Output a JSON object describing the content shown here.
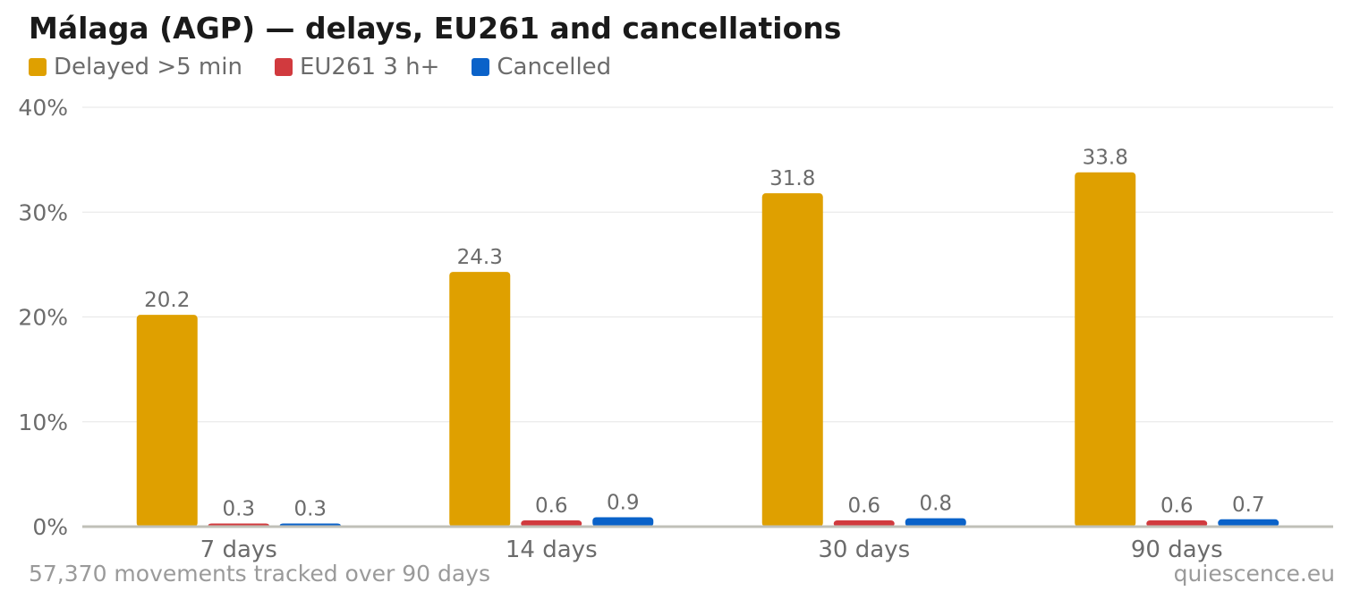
{
  "title": "Málaga (AGP) — delays, EU261 and cancellations",
  "footer": {
    "note": "57,370 movements tracked over 90 days",
    "source": "quiescence.eu"
  },
  "chart_data": {
    "type": "bar",
    "categories": [
      "7 days",
      "14 days",
      "30 days",
      "90 days"
    ],
    "series": [
      {
        "name": "Delayed >5 min",
        "color": "#DFA000",
        "values": [
          20.2,
          24.3,
          31.8,
          33.8
        ],
        "labels": [
          "20.2",
          "24.3",
          "31.8",
          "33.8"
        ]
      },
      {
        "name": "EU261 3 h+",
        "color": "#D13A3E",
        "values": [
          0.3,
          0.6,
          0.6,
          0.6
        ],
        "labels": [
          "0.3",
          "0.6",
          "0.6",
          "0.6"
        ]
      },
      {
        "name": "Cancelled",
        "color": "#0A62C9",
        "values": [
          0.3,
          0.9,
          0.8,
          0.7
        ],
        "labels": [
          "0.3",
          "0.9",
          "0.8",
          "0.7"
        ]
      }
    ],
    "y_ticks": [
      "0%",
      "10%",
      "20%",
      "30%",
      "40%"
    ],
    "y_tick_values": [
      0,
      10,
      20,
      30,
      40
    ],
    "ylim": [
      0,
      40
    ],
    "grid": true,
    "legend_position": "top-left"
  }
}
